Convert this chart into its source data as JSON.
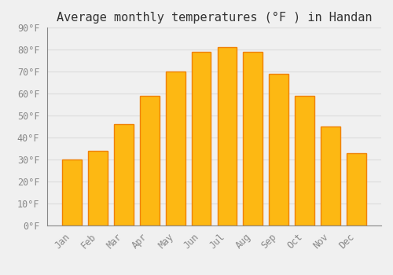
{
  "title": "Average monthly temperatures (°F ) in Handan",
  "months": [
    "Jan",
    "Feb",
    "Mar",
    "Apr",
    "May",
    "Jun",
    "Jul",
    "Aug",
    "Sep",
    "Oct",
    "Nov",
    "Dec"
  ],
  "values": [
    30,
    34,
    46,
    59,
    70,
    79,
    81,
    79,
    69,
    59,
    45,
    33
  ],
  "bar_color_face": "#FDB813",
  "bar_color_edge": "#F08000",
  "background_color": "#F0F0F0",
  "grid_color": "#DDDDDD",
  "ylim": [
    0,
    90
  ],
  "yticks": [
    0,
    10,
    20,
    30,
    40,
    50,
    60,
    70,
    80,
    90
  ],
  "title_fontsize": 11,
  "tick_fontsize": 8.5,
  "font_family": "monospace",
  "bar_width": 0.75
}
